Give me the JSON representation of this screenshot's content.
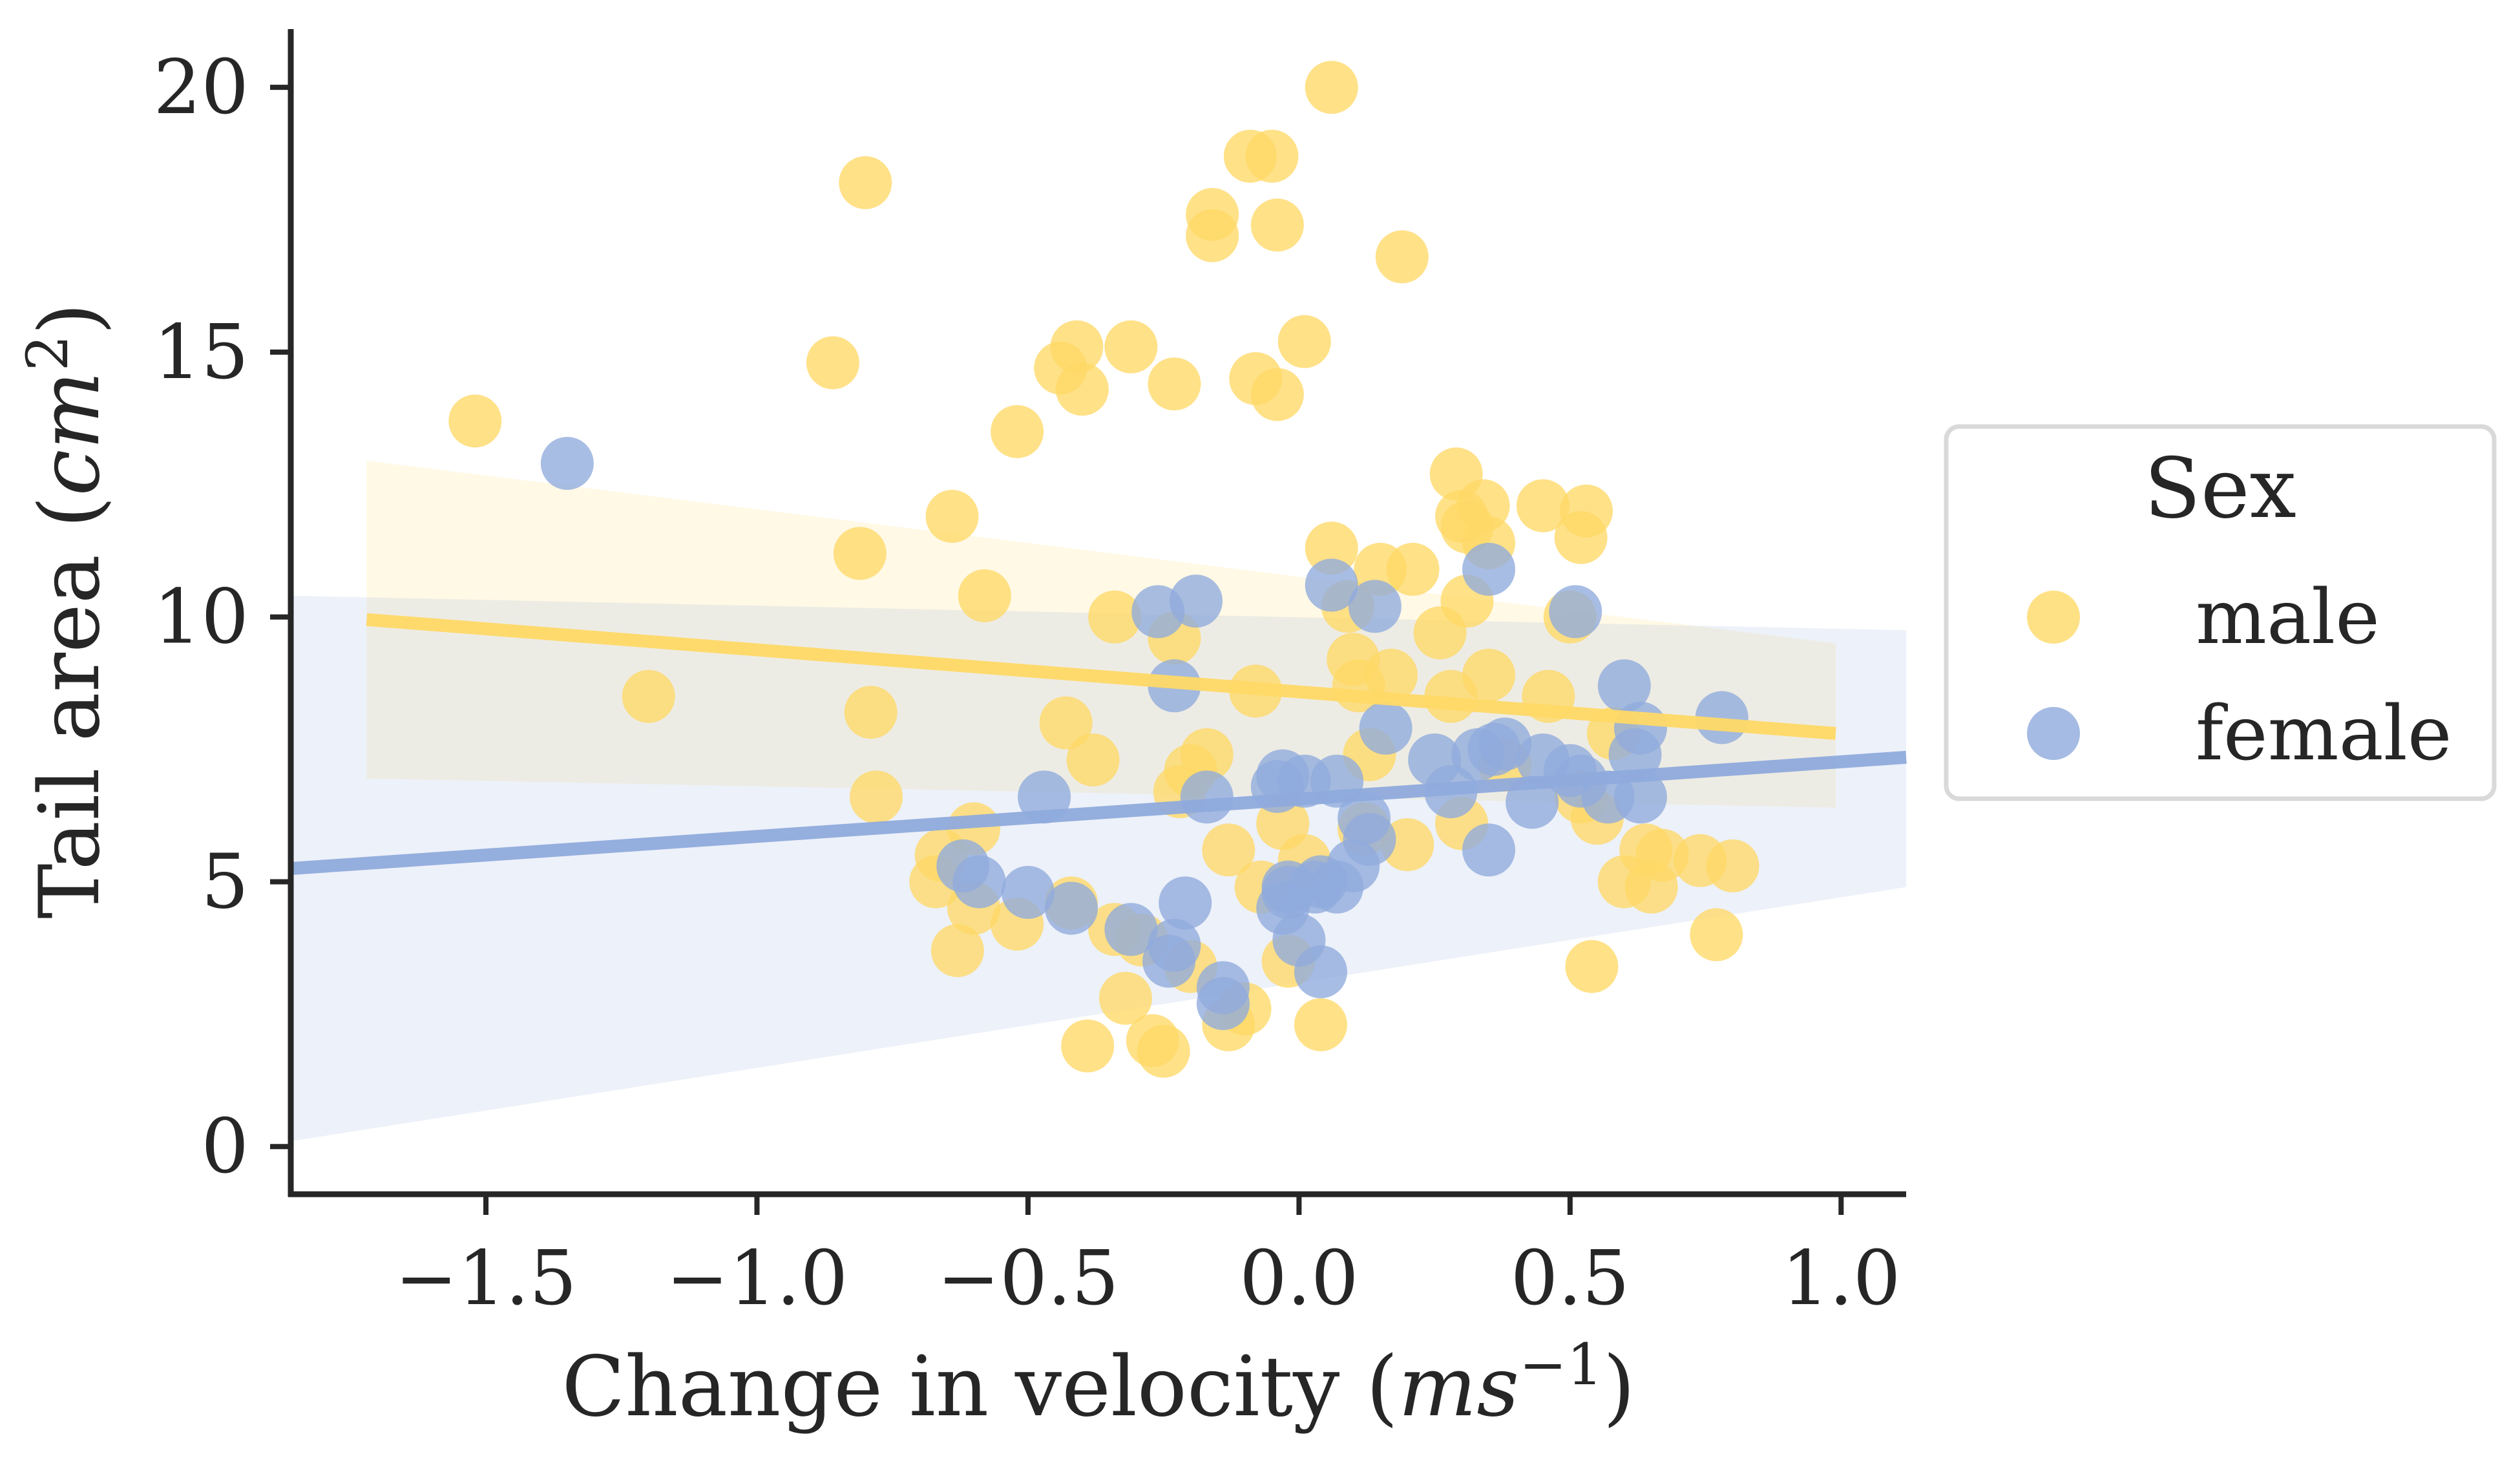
{
  "chart_data": {
    "type": "scatter",
    "title": "",
    "xlabel": "Change in velocity (",
    "xlabel_math": "ms",
    "xlabel_sup": "−1",
    "xlabel_close": ")",
    "ylabel": "Tail area (",
    "ylabel_math": "cm",
    "ylabel_sup": "2",
    "ylabel_close": ")",
    "xlim": [
      -1.86,
      1.12
    ],
    "ylim": [
      -0.9,
      21.1
    ],
    "xticks": [
      -1.5,
      -1.0,
      -0.5,
      0.0,
      0.5,
      1.0
    ],
    "xtick_labels": [
      "−1.5",
      "−1.0",
      "−0.5",
      "0.0",
      "0.5",
      "1.0"
    ],
    "yticks": [
      0,
      5,
      10,
      15,
      20
    ],
    "ytick_labels": [
      "0",
      "5",
      "10",
      "15",
      "20"
    ],
    "grid": false,
    "legend": {
      "title": "Sex",
      "placement": "center-right outside"
    },
    "series": [
      {
        "name": "male",
        "color": "#FFD966",
        "points": [
          [
            -1.52,
            13.7
          ],
          [
            -1.2,
            8.5
          ],
          [
            -0.86,
            14.8
          ],
          [
            -0.81,
            11.2
          ],
          [
            -0.8,
            18.2
          ],
          [
            -0.79,
            8.2
          ],
          [
            -0.78,
            6.6
          ],
          [
            -0.67,
            5.0
          ],
          [
            -0.66,
            5.5
          ],
          [
            -0.64,
            11.9
          ],
          [
            -0.63,
            3.7
          ],
          [
            -0.6,
            6.0
          ],
          [
            -0.6,
            4.5
          ],
          [
            -0.58,
            10.4
          ],
          [
            -0.52,
            13.5
          ],
          [
            -0.52,
            4.2
          ],
          [
            -0.44,
            14.7
          ],
          [
            -0.43,
            8.0
          ],
          [
            -0.42,
            4.6
          ],
          [
            -0.41,
            15.1
          ],
          [
            -0.4,
            14.3
          ],
          [
            -0.38,
            7.3
          ],
          [
            -0.34,
            10.0
          ],
          [
            -0.34,
            4.1
          ],
          [
            -0.39,
            1.9
          ],
          [
            -0.31,
            15.1
          ],
          [
            -0.32,
            2.8
          ],
          [
            -0.29,
            3.9
          ],
          [
            -0.27,
            2.0
          ],
          [
            -0.25,
            1.8
          ],
          [
            -0.23,
            14.4
          ],
          [
            -0.23,
            9.6
          ],
          [
            -0.22,
            6.7
          ],
          [
            -0.2,
            3.4
          ],
          [
            -0.2,
            7.1
          ],
          [
            -0.17,
            7.4
          ],
          [
            -0.16,
            17.6
          ],
          [
            -0.16,
            17.2
          ],
          [
            -0.13,
            5.6
          ],
          [
            -0.13,
            2.3
          ],
          [
            -0.1,
            2.6
          ],
          [
            -0.09,
            18.7
          ],
          [
            -0.08,
            14.5
          ],
          [
            -0.08,
            8.6
          ],
          [
            -0.07,
            4.9
          ],
          [
            -0.05,
            18.7
          ],
          [
            -0.04,
            17.4
          ],
          [
            -0.04,
            14.2
          ],
          [
            -0.03,
            6.1
          ],
          [
            -0.02,
            3.5
          ],
          [
            0.01,
            15.2
          ],
          [
            0.01,
            5.4
          ],
          [
            0.04,
            2.3
          ],
          [
            0.06,
            20.0
          ],
          [
            0.06,
            11.3
          ],
          [
            0.09,
            10.2
          ],
          [
            0.1,
            9.2
          ],
          [
            0.11,
            8.7
          ],
          [
            0.12,
            6.0
          ],
          [
            0.13,
            7.4
          ],
          [
            0.15,
            10.9
          ],
          [
            0.17,
            8.9
          ],
          [
            0.19,
            16.8
          ],
          [
            0.21,
            10.9
          ],
          [
            0.2,
            5.7
          ],
          [
            0.26,
            9.7
          ],
          [
            0.28,
            8.5
          ],
          [
            0.29,
            12.7
          ],
          [
            0.3,
            11.9
          ],
          [
            0.3,
            6.1
          ],
          [
            0.31,
            11.7
          ],
          [
            0.31,
            10.3
          ],
          [
            0.34,
            12.1
          ],
          [
            0.35,
            11.4
          ],
          [
            0.35,
            8.9
          ],
          [
            0.38,
            7.2
          ],
          [
            0.45,
            12.1
          ],
          [
            0.46,
            8.5
          ],
          [
            0.5,
            10.0
          ],
          [
            0.52,
            11.5
          ],
          [
            0.52,
            6.6
          ],
          [
            0.53,
            12.0
          ],
          [
            0.54,
            3.4
          ],
          [
            0.55,
            6.2
          ],
          [
            0.58,
            7.8
          ],
          [
            0.6,
            5.0
          ],
          [
            0.64,
            5.6
          ],
          [
            0.65,
            4.9
          ],
          [
            0.67,
            5.5
          ],
          [
            0.74,
            5.4
          ],
          [
            0.77,
            4.0
          ],
          [
            0.8,
            5.3
          ]
        ]
      },
      {
        "name": "female",
        "color": "#8FAADC",
        "points": [
          [
            -1.35,
            12.9
          ],
          [
            -0.62,
            5.3
          ],
          [
            -0.59,
            5.0
          ],
          [
            -0.5,
            4.8
          ],
          [
            -0.47,
            6.6
          ],
          [
            -0.42,
            4.5
          ],
          [
            -0.31,
            4.1
          ],
          [
            -0.26,
            10.1
          ],
          [
            -0.23,
            8.7
          ],
          [
            -0.23,
            3.8
          ],
          [
            -0.24,
            3.5
          ],
          [
            -0.21,
            4.6
          ],
          [
            -0.19,
            10.3
          ],
          [
            -0.17,
            6.6
          ],
          [
            -0.14,
            3.0
          ],
          [
            -0.14,
            2.7
          ],
          [
            -0.04,
            6.8
          ],
          [
            -0.03,
            7.0
          ],
          [
            -0.03,
            4.5
          ],
          [
            -0.02,
            4.8
          ],
          [
            -0.02,
            4.9
          ],
          [
            0.0,
            3.9
          ],
          [
            0.01,
            6.9
          ],
          [
            0.03,
            4.9
          ],
          [
            0.04,
            5.0
          ],
          [
            0.04,
            3.3
          ],
          [
            0.06,
            10.6
          ],
          [
            0.07,
            4.9
          ],
          [
            0.07,
            6.9
          ],
          [
            0.1,
            5.3
          ],
          [
            0.12,
            6.2
          ],
          [
            0.13,
            5.8
          ],
          [
            0.14,
            10.2
          ],
          [
            0.16,
            7.9
          ],
          [
            0.25,
            7.3
          ],
          [
            0.28,
            6.7
          ],
          [
            0.33,
            7.4
          ],
          [
            0.35,
            10.9
          ],
          [
            0.36,
            7.5
          ],
          [
            0.35,
            5.6
          ],
          [
            0.38,
            7.6
          ],
          [
            0.43,
            6.5
          ],
          [
            0.45,
            7.3
          ],
          [
            0.5,
            7.1
          ],
          [
            0.51,
            10.1
          ],
          [
            0.52,
            6.9
          ],
          [
            0.57,
            6.6
          ],
          [
            0.6,
            8.7
          ],
          [
            0.62,
            7.4
          ],
          [
            0.63,
            6.6
          ],
          [
            0.63,
            7.9
          ],
          [
            0.78,
            8.1
          ]
        ]
      }
    ],
    "regression": [
      {
        "series": "male",
        "x": [
          -1.72,
          0.99
        ],
        "y": [
          9.95,
          7.8
        ],
        "ci_lower": [
          6.95,
          6.4
        ],
        "ci_upper": [
          12.95,
          9.5
        ]
      },
      {
        "series": "female",
        "x": [
          -1.86,
          1.12
        ],
        "y": [
          5.25,
          7.35
        ],
        "ci_lower": [
          0.1,
          4.9
        ],
        "ci_upper": [
          10.4,
          9.75
        ]
      }
    ]
  }
}
